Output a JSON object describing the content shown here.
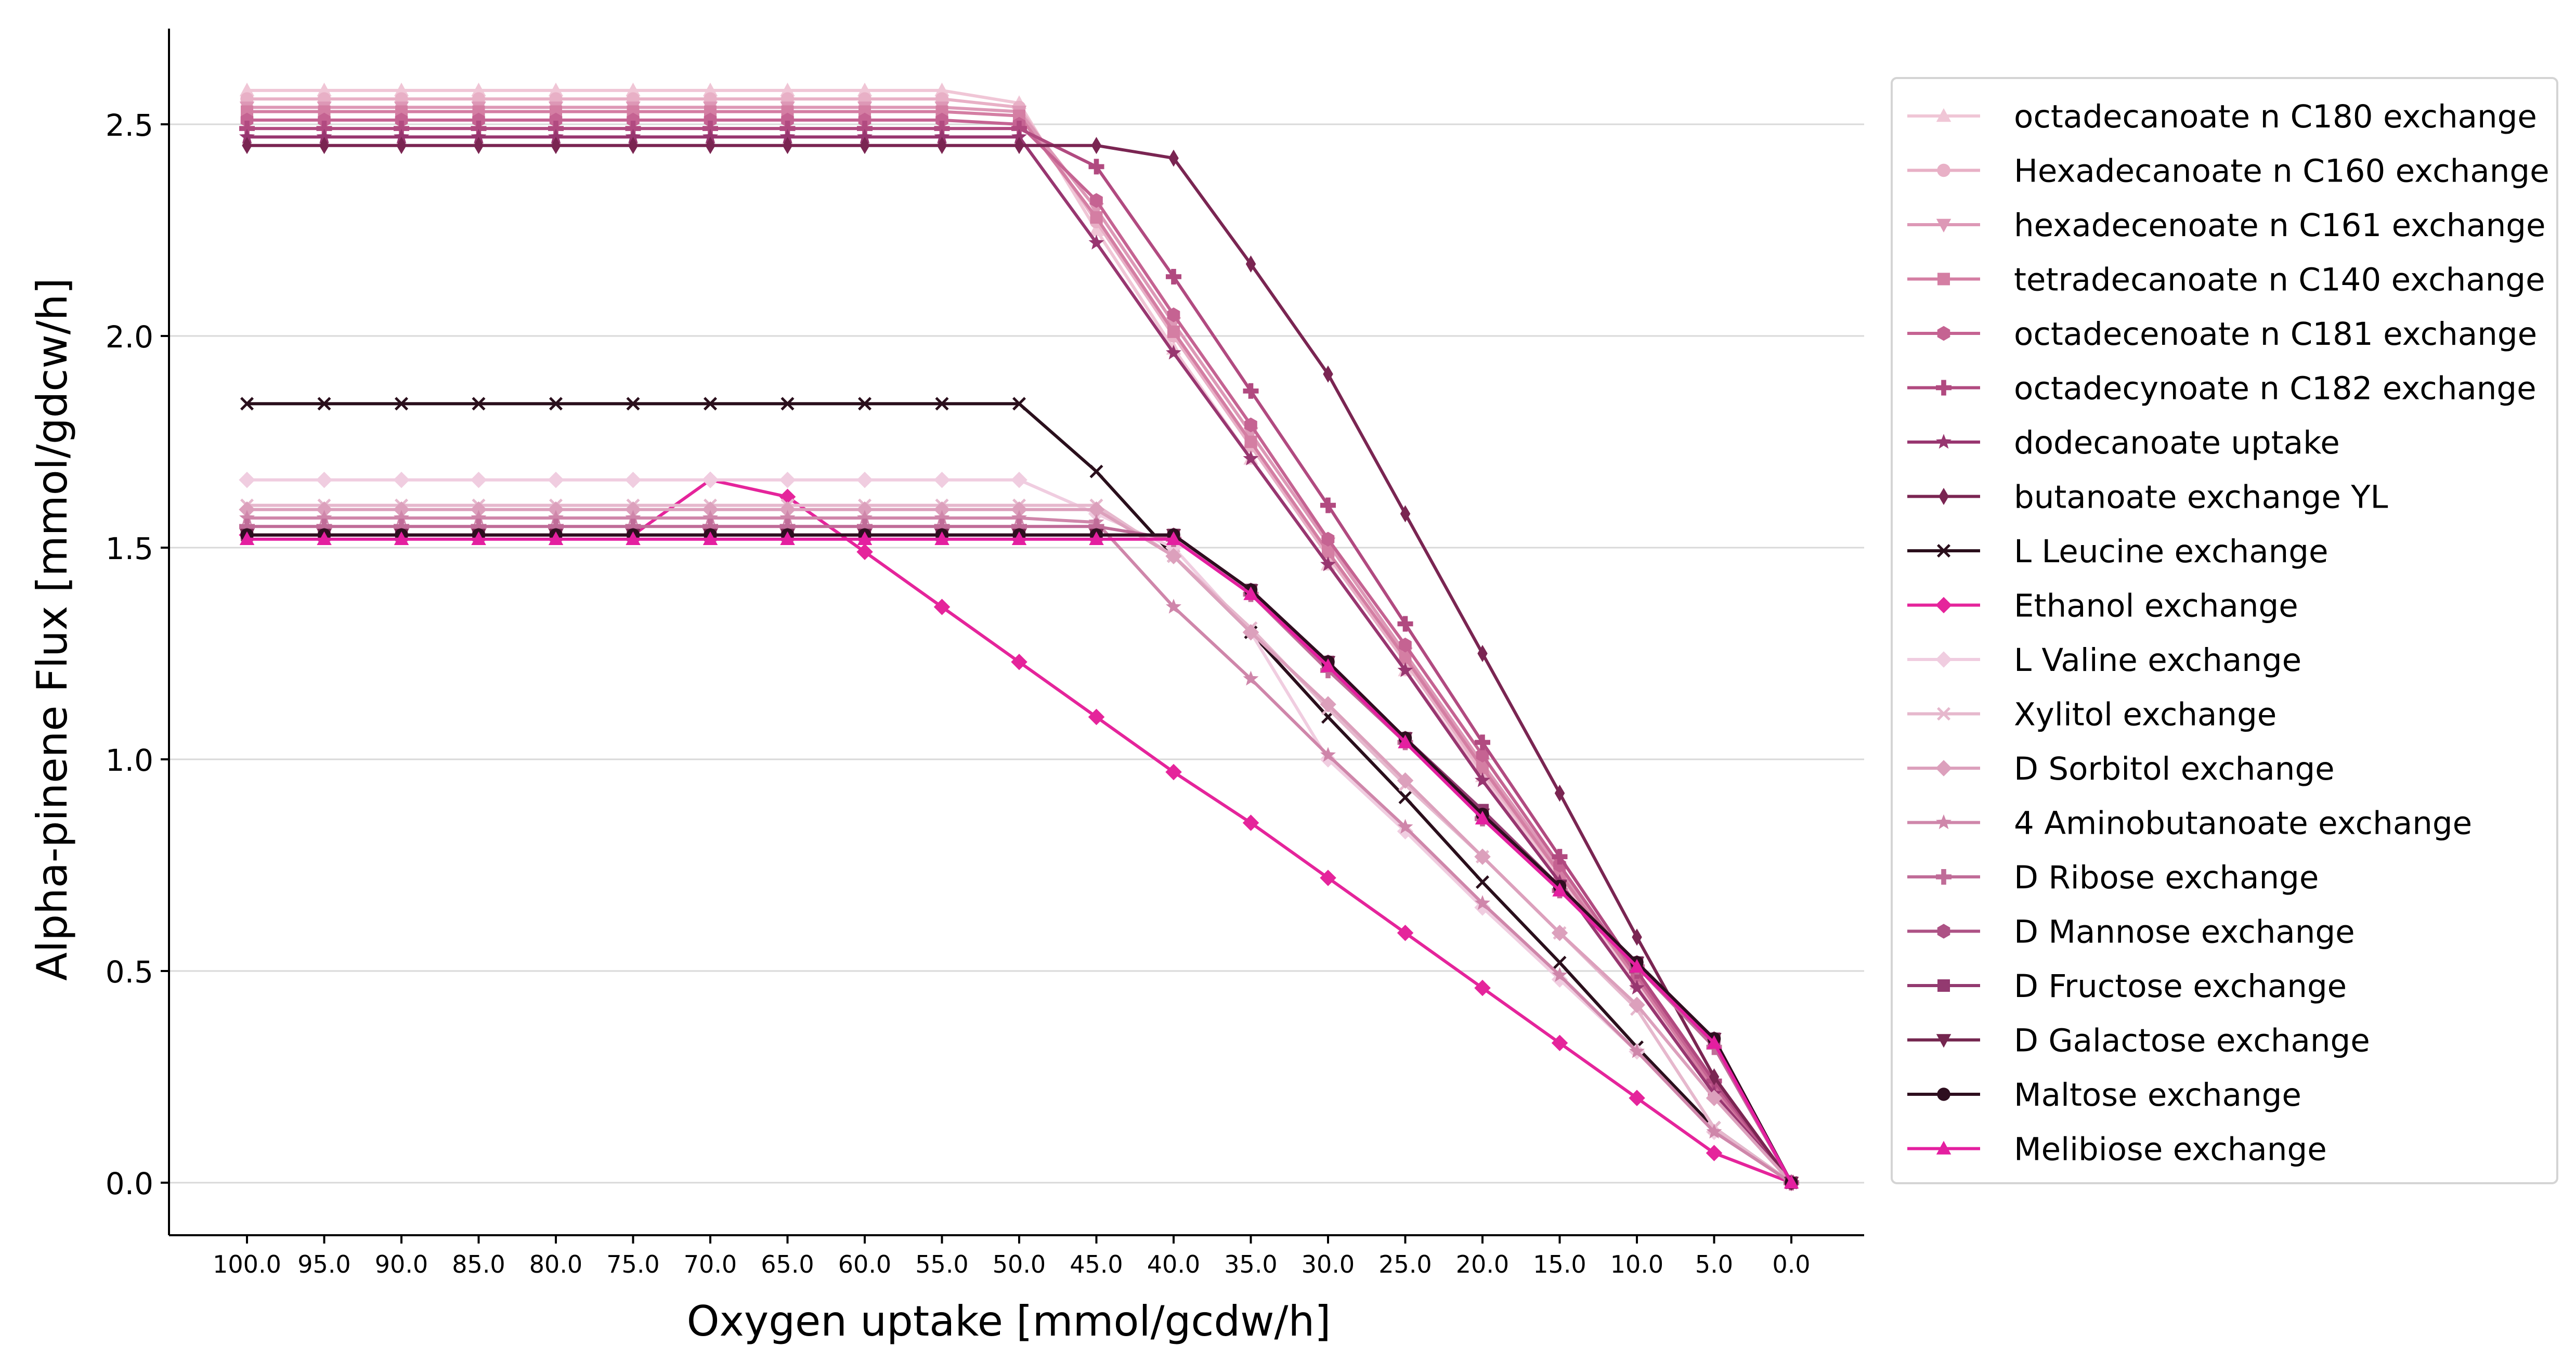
{
  "chart_data": {
    "type": "line",
    "xlabel": "Oxygen uptake [mmol/gcdw/h]",
    "ylabel": "Alpha-pinene Flux [mmol/gdcw/h]",
    "x": [
      100,
      95,
      90,
      85,
      80,
      75,
      70,
      65,
      60,
      55,
      50,
      45,
      40,
      35,
      30,
      25,
      20,
      15,
      10,
      5,
      0
    ],
    "x_tick_labels": [
      "100.0",
      "95.0",
      "90.0",
      "85.0",
      "80.0",
      "75.0",
      "70.0",
      "65.0",
      "60.0",
      "55.0",
      "50.0",
      "45.0",
      "40.0",
      "35.0",
      "30.0",
      "25.0",
      "20.0",
      "15.0",
      "10.0",
      "5.0",
      "0.0"
    ],
    "xlim": [
      100,
      0
    ],
    "ylim": [
      0,
      2.65
    ],
    "y_ticks": [
      0.0,
      0.5,
      1.0,
      1.5,
      2.0,
      2.5
    ],
    "y_tick_labels": [
      "0.0",
      "0.5",
      "1.0",
      "1.5",
      "2.0",
      "2.5"
    ],
    "grid": "horizontal",
    "legend_position": "right",
    "series": [
      {
        "name": "octadecanoate n C180 exchange",
        "color": "#f0c6d6",
        "marker": "triangle-up",
        "values": [
          2.58,
          2.58,
          2.58,
          2.58,
          2.58,
          2.58,
          2.58,
          2.58,
          2.58,
          2.58,
          2.55,
          2.25,
          1.97,
          1.71,
          1.46,
          1.21,
          0.96,
          0.72,
          0.47,
          0.21,
          0.0
        ]
      },
      {
        "name": "Hexadecanoate n C160 exchange",
        "color": "#e8b0c6",
        "marker": "circle",
        "values": [
          2.56,
          2.56,
          2.56,
          2.56,
          2.56,
          2.56,
          2.56,
          2.56,
          2.56,
          2.56,
          2.54,
          2.27,
          2.0,
          1.74,
          1.48,
          1.23,
          0.97,
          0.73,
          0.48,
          0.22,
          0.0
        ]
      },
      {
        "name": "hexadecenoate n C161 exchange",
        "color": "#dd98b6",
        "marker": "triangle-down",
        "values": [
          2.54,
          2.54,
          2.54,
          2.54,
          2.54,
          2.54,
          2.54,
          2.54,
          2.54,
          2.54,
          2.53,
          2.3,
          2.03,
          1.77,
          1.51,
          1.25,
          0.99,
          0.74,
          0.49,
          0.23,
          0.0
        ]
      },
      {
        "name": "tetradecanoate n C140 exchange",
        "color": "#d47ea3",
        "marker": "square",
        "values": [
          2.53,
          2.53,
          2.53,
          2.53,
          2.53,
          2.53,
          2.53,
          2.53,
          2.53,
          2.53,
          2.52,
          2.28,
          2.01,
          1.75,
          1.49,
          1.24,
          0.98,
          0.73,
          0.48,
          0.22,
          0.0
        ]
      },
      {
        "name": "octadecenoate n C181 exchange",
        "color": "#c56392",
        "marker": "hexagon",
        "values": [
          2.51,
          2.51,
          2.51,
          2.51,
          2.51,
          2.51,
          2.51,
          2.51,
          2.51,
          2.51,
          2.5,
          2.32,
          2.05,
          1.79,
          1.52,
          1.27,
          1.01,
          0.75,
          0.49,
          0.23,
          0.0
        ]
      },
      {
        "name": "octadecynoate n C182 exchange",
        "color": "#b14a80",
        "marker": "plus",
        "values": [
          2.49,
          2.49,
          2.49,
          2.49,
          2.49,
          2.49,
          2.49,
          2.49,
          2.49,
          2.49,
          2.49,
          2.4,
          2.14,
          1.87,
          1.6,
          1.32,
          1.04,
          0.77,
          0.5,
          0.24,
          0.0
        ]
      },
      {
        "name": "dodecanoate uptake",
        "color": "#983670",
        "marker": "star",
        "values": [
          2.47,
          2.47,
          2.47,
          2.47,
          2.47,
          2.47,
          2.47,
          2.47,
          2.47,
          2.47,
          2.47,
          2.22,
          1.96,
          1.71,
          1.46,
          1.21,
          0.95,
          0.71,
          0.46,
          0.21,
          0.0
        ]
      },
      {
        "name": "butanoate exchange YL",
        "color": "#7a2552",
        "marker": "thin-diamond",
        "values": [
          2.45,
          2.45,
          2.45,
          2.45,
          2.45,
          2.45,
          2.45,
          2.45,
          2.45,
          2.45,
          2.45,
          2.45,
          2.42,
          2.17,
          1.91,
          1.58,
          1.25,
          0.92,
          0.58,
          0.25,
          0.0
        ]
      },
      {
        "name": "L Leucine exchange",
        "color": "#2a0f1c",
        "marker": "x",
        "values": [
          1.84,
          1.84,
          1.84,
          1.84,
          1.84,
          1.84,
          1.84,
          1.84,
          1.84,
          1.84,
          1.84,
          1.68,
          1.48,
          1.3,
          1.1,
          0.91,
          0.71,
          0.52,
          0.32,
          0.13,
          0.0
        ]
      },
      {
        "name": "Ethanol exchange",
        "color": "#e5249b",
        "marker": "diamond",
        "values": [
          1.53,
          1.53,
          1.53,
          1.53,
          1.53,
          1.53,
          1.66,
          1.62,
          1.49,
          1.36,
          1.23,
          1.1,
          0.97,
          0.85,
          0.72,
          0.59,
          0.46,
          0.33,
          0.2,
          0.07,
          0.0
        ]
      },
      {
        "name": "L Valine exchange",
        "color": "#f0cde0",
        "marker": "diamond",
        "values": [
          1.66,
          1.66,
          1.66,
          1.66,
          1.66,
          1.66,
          1.66,
          1.66,
          1.66,
          1.66,
          1.66,
          1.58,
          1.5,
          1.3,
          1.0,
          0.83,
          0.65,
          0.48,
          0.31,
          0.12,
          0.0
        ]
      },
      {
        "name": "Xylitol exchange",
        "color": "#e6b8cd",
        "marker": "x",
        "values": [
          1.6,
          1.6,
          1.6,
          1.6,
          1.6,
          1.6,
          1.6,
          1.6,
          1.6,
          1.6,
          1.6,
          1.6,
          1.48,
          1.31,
          1.12,
          0.94,
          0.77,
          0.59,
          0.41,
          0.13,
          0.0
        ]
      },
      {
        "name": "D Sorbitol exchange",
        "color": "#dca0bc",
        "marker": "diamond",
        "values": [
          1.59,
          1.59,
          1.59,
          1.59,
          1.59,
          1.59,
          1.59,
          1.59,
          1.59,
          1.59,
          1.59,
          1.59,
          1.48,
          1.3,
          1.13,
          0.95,
          0.77,
          0.59,
          0.42,
          0.2,
          0.0
        ]
      },
      {
        "name": "4 Aminobutanoate exchange",
        "color": "#cf86aa",
        "marker": "star",
        "values": [
          1.57,
          1.57,
          1.57,
          1.57,
          1.57,
          1.57,
          1.57,
          1.57,
          1.57,
          1.57,
          1.57,
          1.56,
          1.36,
          1.19,
          1.01,
          0.84,
          0.66,
          0.49,
          0.31,
          0.12,
          0.0
        ]
      },
      {
        "name": "D Ribose exchange",
        "color": "#c06c98",
        "marker": "plus",
        "values": [
          1.55,
          1.55,
          1.55,
          1.55,
          1.55,
          1.55,
          1.55,
          1.55,
          1.55,
          1.55,
          1.55,
          1.55,
          1.52,
          1.39,
          1.21,
          1.04,
          0.86,
          0.69,
          0.51,
          0.32,
          0.0
        ]
      },
      {
        "name": "D Mannose exchange",
        "color": "#ad5285",
        "marker": "hexagon",
        "values": [
          1.53,
          1.53,
          1.53,
          1.53,
          1.53,
          1.53,
          1.53,
          1.53,
          1.53,
          1.53,
          1.53,
          1.53,
          1.53,
          1.4,
          1.23,
          1.05,
          0.87,
          0.7,
          0.52,
          0.34,
          0.0
        ]
      },
      {
        "name": "D Fructose exchange",
        "color": "#933a70",
        "marker": "square",
        "values": [
          1.53,
          1.53,
          1.53,
          1.53,
          1.53,
          1.53,
          1.53,
          1.53,
          1.53,
          1.53,
          1.53,
          1.53,
          1.53,
          1.4,
          1.23,
          1.05,
          0.88,
          0.7,
          0.52,
          0.34,
          0.0
        ]
      },
      {
        "name": "D Galactose exchange",
        "color": "#74264f",
        "marker": "triangle-down",
        "values": [
          1.53,
          1.53,
          1.53,
          1.53,
          1.53,
          1.53,
          1.53,
          1.53,
          1.53,
          1.53,
          1.53,
          1.53,
          1.53,
          1.4,
          1.23,
          1.05,
          0.87,
          0.7,
          0.52,
          0.34,
          0.0
        ]
      },
      {
        "name": "Maltose exchange",
        "color": "#2e0e1f",
        "marker": "circle",
        "values": [
          1.53,
          1.53,
          1.53,
          1.53,
          1.53,
          1.53,
          1.53,
          1.53,
          1.53,
          1.53,
          1.53,
          1.53,
          1.53,
          1.4,
          1.23,
          1.05,
          0.87,
          0.7,
          0.52,
          0.34,
          0.0
        ]
      },
      {
        "name": "Melibiose exchange",
        "color": "#e41fa0",
        "marker": "triangle-up",
        "values": [
          1.52,
          1.52,
          1.52,
          1.52,
          1.52,
          1.52,
          1.52,
          1.52,
          1.52,
          1.52,
          1.52,
          1.52,
          1.52,
          1.39,
          1.22,
          1.04,
          0.86,
          0.69,
          0.51,
          0.33,
          0.0
        ]
      }
    ]
  }
}
